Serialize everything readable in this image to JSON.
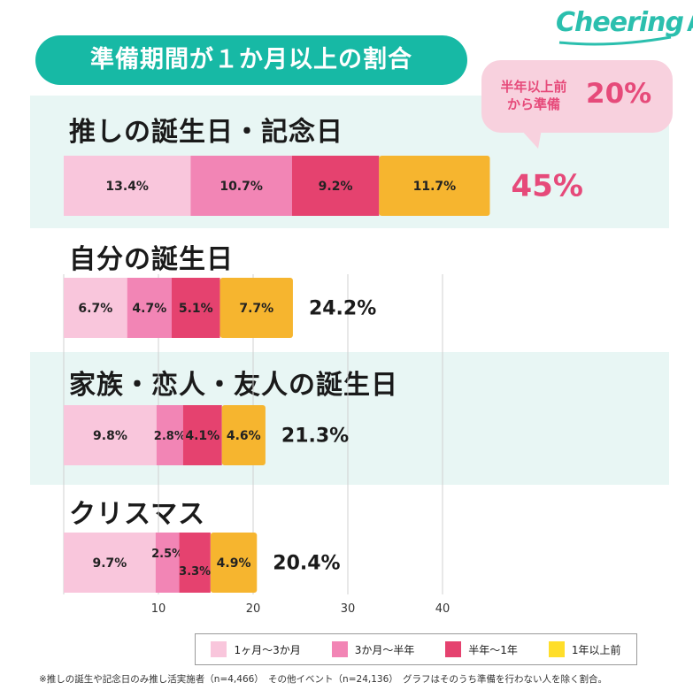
{
  "logo": {
    "text": "Cheering",
    "suffix": "AD"
  },
  "title": "準備期間が１か月以上の割合",
  "callout": {
    "text_line1": "半年以上前",
    "text_line2": "から準備",
    "value": "20%"
  },
  "colors": {
    "band": "#e8f6f4",
    "teal": "#17b9a5",
    "callout_bg": "#f8d1de",
    "pink_text": "#e64a7a"
  },
  "chart_data": {
    "type": "bar",
    "orientation": "horizontal",
    "stacked": true,
    "xlim": [
      0,
      50
    ],
    "xticks": [
      10,
      20,
      30,
      40
    ],
    "grid": true,
    "legend_position": "bottom",
    "categories": [
      "推しの誕生日・記念日",
      "自分の誕生日",
      "家族・恋人・友人の誕生日",
      "クリスマス"
    ],
    "series": [
      {
        "name": "1ヶ月〜3か月",
        "color": "#f9c6dc",
        "values": [
          13.4,
          6.7,
          9.8,
          9.7
        ]
      },
      {
        "name": "3か月〜半年",
        "color": "#f285b5",
        "values": [
          10.7,
          4.7,
          2.8,
          2.5
        ]
      },
      {
        "name": "半年〜1年",
        "color": "#e5426f",
        "values": [
          9.2,
          5.1,
          4.1,
          3.3
        ]
      },
      {
        "name": "1年以上前",
        "color": "#f6b52f",
        "values": [
          11.7,
          7.7,
          4.6,
          4.9
        ]
      }
    ],
    "labels": [
      [
        "13.4%",
        "10.7%",
        "9.2%",
        "11.7%"
      ],
      [
        "6.7%",
        "4.7%",
        "5.1%",
        "7.7%"
      ],
      [
        "9.8%",
        "2.8%",
        "4.1%",
        "4.6%"
      ],
      [
        "9.7%",
        "2.5%",
        "3.3%",
        "4.9%"
      ]
    ],
    "totals": [
      "45%",
      "24.2%",
      "21.3%",
      "20.4%"
    ],
    "legend_swatches": [
      "#f9c6dc",
      "#f285b5",
      "#e5426f",
      "#ffde2a"
    ]
  },
  "footnote": "※推しの誕生や記念日のみ推し活実施者（n=4,466）　その他イベント（n=24,136）　グラフはそのうち準備を行わない人を除く割合。"
}
